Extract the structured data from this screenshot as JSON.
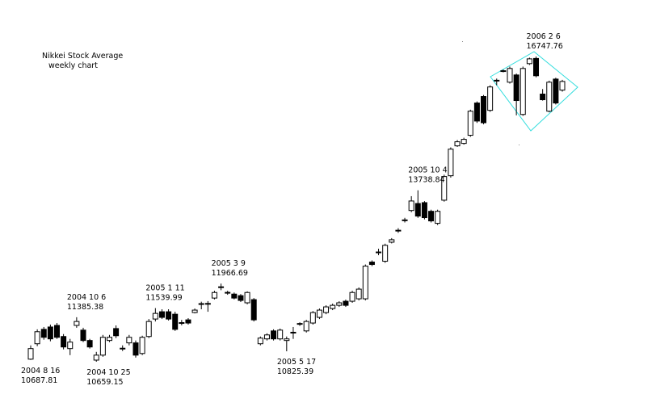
{
  "chart_data": {
    "type": "candlestick",
    "title": "Nikkei Stock Average",
    "subtitle": "weekly chart",
    "log_scale": true,
    "up_color": "#ffffff",
    "down_color": "#000000",
    "open": [
      10700,
      10947,
      11183,
      11222,
      11248,
      11065,
      10869,
      11248,
      11170,
      11000,
      10685,
      10764,
      11000,
      11196,
      10869,
      10961,
      10961,
      10790,
      11065,
      11355,
      11478,
      11478,
      11436,
      11288,
      11341,
      11464,
      11617,
      11612,
      11713,
      11905,
      11812,
      11782,
      11755,
      11631,
      11686,
      10947,
      11026,
      11157,
      11026,
      11000,
      11130,
      11272,
      11157,
      11288,
      11383,
      11464,
      11533,
      11588,
      11658,
      11658,
      11700,
      11700,
      12354,
      12530,
      12369,
      12723,
      12940,
      13140,
      13334,
      13473,
      13490,
      13318,
      13083,
      13539,
      14038,
      14673,
      14726,
      14904,
      15634,
      15785,
      15465,
      16160,
      16390,
      16123,
      16297,
      15371,
      16572,
      16700,
      15842,
      15446,
      16198,
      15936
    ],
    "high": [
      10921,
      11183,
      11222,
      11262,
      11288,
      11105,
      11026,
      11385.38,
      11209,
      11026,
      10816,
      11091,
      11091,
      11248,
      10921,
      11091,
      11000,
      11078,
      11355,
      11539.99,
      11520,
      11520,
      11478,
      11340,
      11370,
      11533,
      11650,
      11660,
      11840,
      11966.69,
      11840,
      11810,
      11782,
      11830,
      11713,
      11065,
      11117,
      11183,
      11196,
      11065,
      11222,
      11300,
      11341,
      11490,
      11533,
      11588,
      11617,
      11658,
      11686,
      11840,
      11898,
      12310,
      12385,
      12600,
      12695,
      12800,
      12990,
      13190,
      13620,
      13738.84,
      13520,
      13350,
      13350,
      14060,
      14640,
      14800,
      14850,
      15480,
      15670,
      15820,
      16050,
      16210,
      16430,
      16500,
      16330,
      16500,
      16720,
      16747.76,
      15960,
      16160,
      16230,
      16180
    ],
    "low": [
      10687.81,
      10908,
      11013,
      10987,
      11026,
      10856,
      10764,
      11209,
      10974,
      10869,
      10659.15,
      10738,
      10974,
      11039,
      10830,
      10921,
      10725,
      10764,
      11039,
      11314,
      11355,
      11330,
      11157,
      11250,
      11262,
      11450,
      11520,
      11478,
      11690,
      11850,
      11770,
      11690,
      11645,
      11605,
      11314,
      10921,
      11000,
      11000,
      11000,
      10825.39,
      11026,
      11240,
      11130,
      11262,
      11355,
      11436,
      11506,
      11561,
      11561,
      11631,
      11672,
      11672,
      12280,
      12480,
      12340,
      12700,
      12900,
      13100,
      13300,
      13190,
      13160,
      13100,
      13050,
      13510,
      14000,
      14650,
      14700,
      14870,
      15180,
      15150,
      15430,
      16050,
      16360,
      16090,
      15352,
      15340,
      16540,
      16240,
      15690,
      15420,
      15600,
      15900
    ],
    "close": [
      10869,
      11144,
      11052,
      11026,
      11052,
      10895,
      10974,
      11314,
      11000,
      10895,
      10764,
      11052,
      11052,
      11078,
      10875,
      11052,
      10764,
      11052,
      11314,
      11450,
      11383,
      11355,
      11183,
      11295,
      11288,
      11506,
      11610,
      11620,
      11810,
      11910,
      11805,
      11713,
      11672,
      11810,
      11341,
      11039,
      11091,
      11026,
      11170,
      11026,
      11135,
      11280,
      11314,
      11464,
      11506,
      11561,
      11588,
      11631,
      11588,
      11810,
      11869,
      12280,
      12310,
      12540,
      12664,
      12769,
      12950,
      13150,
      13523,
      13224,
      13194,
      13130,
      13318,
      14022,
      14602,
      14762,
      14815,
      15446,
      15222,
      15184,
      16010,
      16170,
      16400,
      16454,
      15691,
      16454,
      16690,
      16278,
      15710,
      16123,
      15634,
      16141
    ],
    "annotations": [
      {
        "date": "2004 8 16",
        "value": 10687.81
      },
      {
        "date": "2004 10 6",
        "value": 11385.38
      },
      {
        "date": "2004 10 25",
        "value": 10659.15
      },
      {
        "date": "2005 1 11",
        "value": 11539.99
      },
      {
        "date": "2005 3 9",
        "value": 11966.69
      },
      {
        "date": "2005 5 17",
        "value": 10825.39
      },
      {
        "date": "2005 10 4",
        "value": 13738.84
      },
      {
        "date": "2006 2 6",
        "value": 16747.76
      }
    ]
  }
}
